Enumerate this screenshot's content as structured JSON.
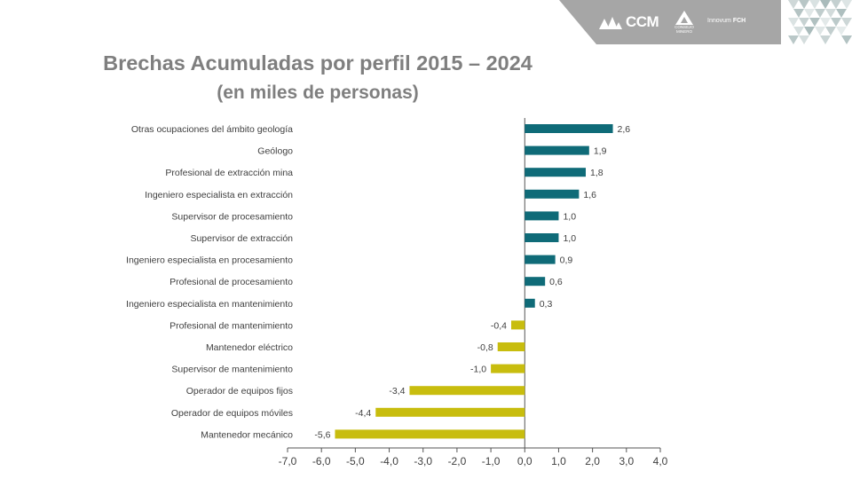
{
  "header": {
    "logo_ccm_text": "CCM",
    "logo_consejo_line1": "CONSEJO",
    "logo_consejo_line2": "MINERO",
    "logo_innovum_text": "Innovum",
    "logo_innovum_bold": "FCH",
    "band_color": "#a6a6a6"
  },
  "chart_data": {
    "type": "bar",
    "orientation": "horizontal",
    "title": "Brechas Acumuladas por perfil 2015 – 2024",
    "subtitle": "(en miles de personas)",
    "categories": [
      "Otras ocupaciones del ámbito geología",
      "Geólogo",
      "Profesional de extracción mina",
      "Ingeniero especialista en extracción",
      "Supervisor de procesamiento",
      "Supervisor de extracción",
      "Ingeniero especialista en procesamiento",
      "Profesional de procesamiento",
      "Ingeniero especialista en mantenimiento",
      "Profesional de mantenimiento",
      "Mantenedor eléctrico",
      "Supervisor de mantenimiento",
      "Operador de equipos fijos",
      "Operador de equipos móviles",
      "Mantenedor mecánico"
    ],
    "values": [
      2.6,
      1.9,
      1.8,
      1.6,
      1.0,
      1.0,
      0.9,
      0.6,
      0.3,
      -0.4,
      -0.8,
      -1.0,
      -3.4,
      -4.4,
      -5.6
    ],
    "value_labels": [
      "2,6",
      "1,9",
      "1,8",
      "1,6",
      "1,0",
      "1,0",
      "0,9",
      "0,6",
      "0,3",
      "-0,4",
      "-0,8",
      "-1,0",
      "-3,4",
      "-4,4",
      "-5,6"
    ],
    "xlim": [
      -7.0,
      4.0
    ],
    "x_ticks": [
      -7.0,
      -6.0,
      -5.0,
      -4.0,
      -3.0,
      -2.0,
      -1.0,
      0.0,
      1.0,
      2.0,
      3.0,
      4.0
    ],
    "x_tick_labels": [
      "-7,0",
      "-6,0",
      "-5,0",
      "-4,0",
      "-3,0",
      "-2,0",
      "-1,0",
      "0,0",
      "1,0",
      "2,0",
      "3,0",
      "4,0"
    ],
    "grid": false,
    "legend": "none",
    "colors": {
      "positive": "#0f6b78",
      "negative": "#c8bd0e",
      "axis": "#555555",
      "text": "#404040"
    }
  }
}
